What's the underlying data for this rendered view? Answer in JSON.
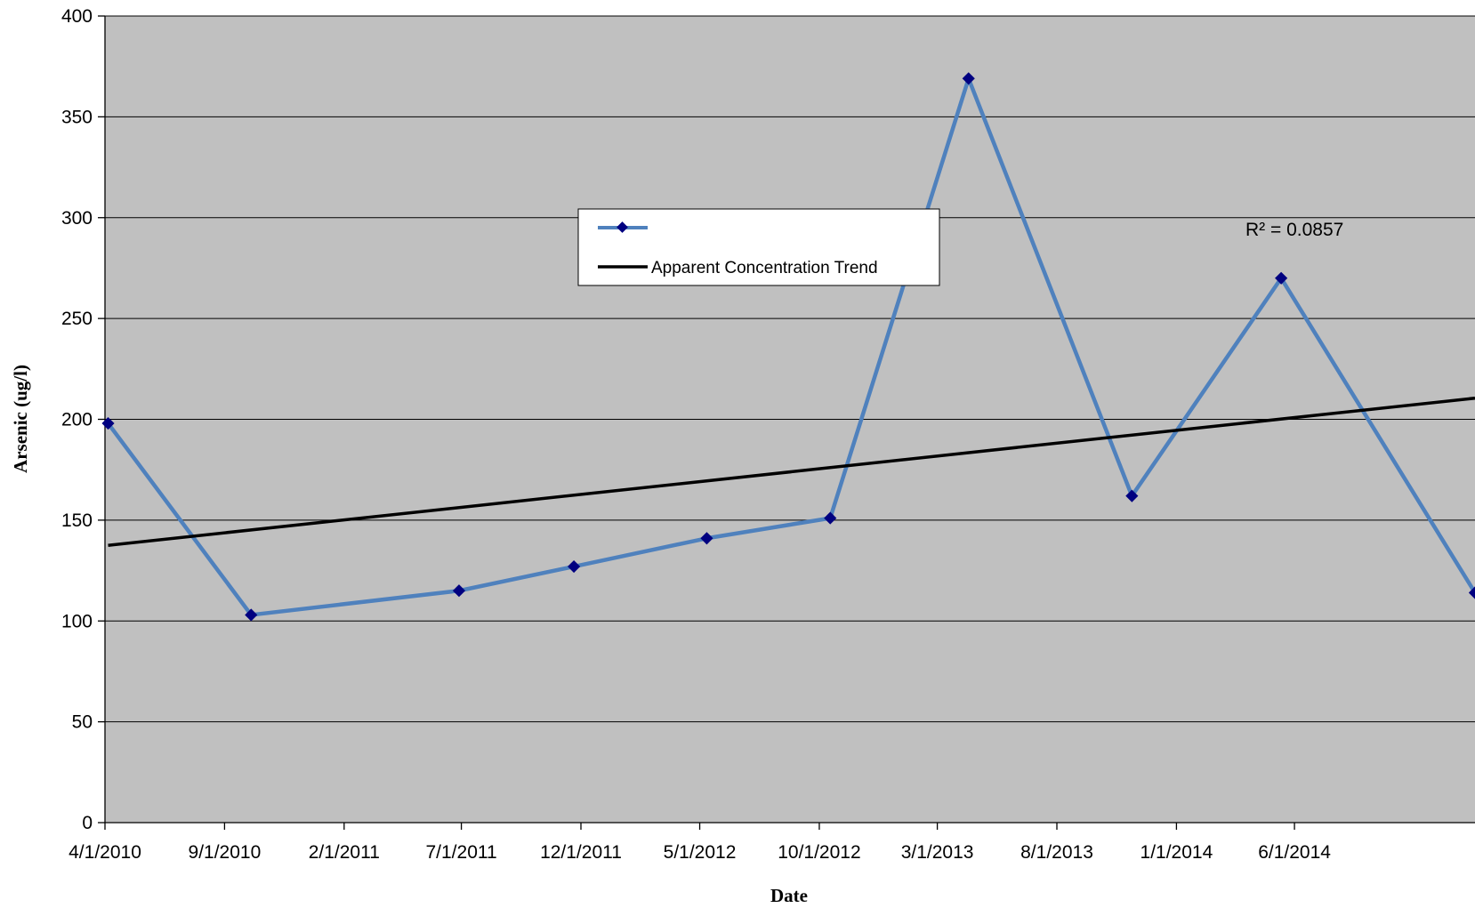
{
  "chart_data": {
    "type": "line",
    "title": "",
    "xlabel": "Date",
    "ylabel": "Arsenic (ug/l)",
    "ylim": [
      0,
      400
    ],
    "yticks": [
      "0",
      "50",
      "100",
      "150",
      "200",
      "250",
      "300",
      "350",
      "400"
    ],
    "xlim": [
      "2010-04-01",
      "2015-01-18"
    ],
    "xticks": [
      {
        "date": "2010-04-01",
        "label": "4/1/2010"
      },
      {
        "date": "2010-09-01",
        "label": "9/1/2010"
      },
      {
        "date": "2011-02-01",
        "label": "2/1/2011"
      },
      {
        "date": "2011-07-01",
        "label": "7/1/2011"
      },
      {
        "date": "2011-12-01",
        "label": "12/1/2011"
      },
      {
        "date": "2012-05-01",
        "label": "5/1/2012"
      },
      {
        "date": "2012-10-01",
        "label": "10/1/2012"
      },
      {
        "date": "2013-03-01",
        "label": "3/1/2013"
      },
      {
        "date": "2013-08-01",
        "label": "8/1/2013"
      },
      {
        "date": "2014-01-01",
        "label": "1/1/2014"
      },
      {
        "date": "2014-06-01",
        "label": "6/1/2014"
      }
    ],
    "grid": "horizontal",
    "series": [
      {
        "name": "",
        "color": "#4f81bd",
        "marker_color": "#000080",
        "x": [
          "2010-04-05",
          "2010-10-05",
          "2011-06-28",
          "2011-11-22",
          "2012-05-10",
          "2012-10-15",
          "2013-04-10",
          "2013-11-05",
          "2014-05-15",
          "2015-01-18"
        ],
        "y": [
          198,
          103,
          115,
          127,
          141,
          151,
          369,
          162,
          270,
          114
        ]
      },
      {
        "name": "Apparent Concentration Trend",
        "color": "#000000",
        "type": "trendline",
        "x": [
          "2010-04-05",
          "2015-01-18"
        ],
        "y": [
          137.5,
          210.5
        ]
      }
    ],
    "annotations": [
      "R² = 0.0857"
    ],
    "legend_position": "center"
  }
}
